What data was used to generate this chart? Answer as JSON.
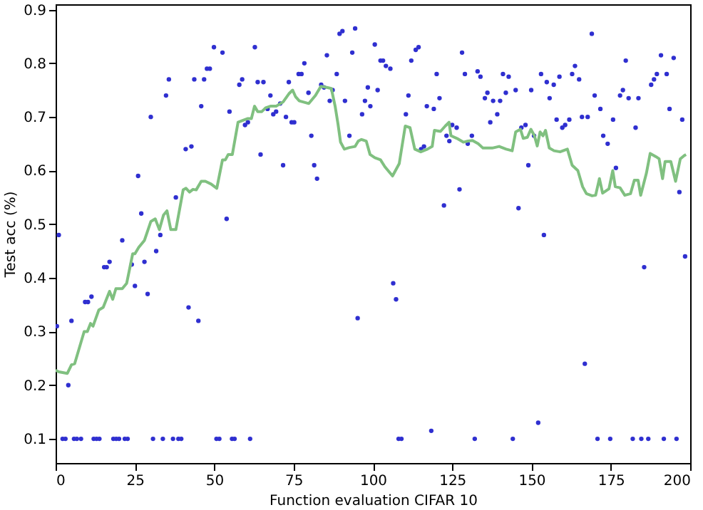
{
  "chart_data": {
    "type": "scatter",
    "xlabel": "Function evaluation CIFAR 10",
    "ylabel": "Test acc (%)",
    "xlim": [
      0,
      200
    ],
    "ylim": [
      0.055,
      0.91
    ],
    "xticks": [
      0,
      25,
      50,
      75,
      100,
      125,
      150,
      175,
      200
    ],
    "yticks": [
      0.1,
      0.2,
      0.3,
      0.4,
      0.5,
      0.6,
      0.7,
      0.8,
      0.9
    ],
    "grid": false,
    "series": [
      {
        "marker": "circle",
        "color": "#2f2fd0",
        "x": [
          0.4,
          1,
          2.2,
          3.1,
          4,
          5,
          5.8,
          6.7,
          8,
          9.3,
          10.2,
          11.3,
          12,
          12.9,
          13.8,
          15.3,
          16.1,
          17,
          18.2,
          19.1,
          20,
          21,
          21.8,
          22.7,
          24,
          25,
          26,
          27,
          28,
          29,
          30,
          30.7,
          31.7,
          33,
          33.8,
          34.8,
          35.7,
          37,
          37.9,
          38.7,
          39.6,
          41,
          41.9,
          42.8,
          43.7,
          45,
          45.9,
          46.8,
          47.7,
          48.6,
          49.9,
          50.7,
          51.6,
          52.6,
          53.9,
          54.8,
          55.6,
          56.4,
          57.9,
          58.8,
          59.7,
          60.6,
          61.3,
          62.8,
          63.7,
          64.6,
          65.5,
          66.8,
          67.7,
          68.6,
          69.5,
          70.8,
          71.7,
          72.6,
          73.5,
          74.4,
          75.2,
          76.6,
          77.5,
          78.4,
          79.7,
          80.6,
          81.5,
          82.4,
          83.7,
          84.6,
          85.5,
          86.4,
          87.3,
          88.6,
          89.5,
          90.4,
          91.2,
          92.6,
          93.5,
          94.4,
          95.2,
          96.6,
          97.5,
          98.4,
          99.2,
          100.6,
          101.5,
          102.4,
          103.2,
          104.1,
          105.5,
          106.4,
          107.3,
          108.1,
          109,
          110.4,
          111.2,
          112.1,
          113.5,
          114.4,
          115.2,
          116.1,
          117,
          118.4,
          119.2,
          120.1,
          121,
          122.4,
          123.2,
          124.1,
          125,
          126.4,
          127.3,
          128.1,
          129,
          129.9,
          131.2,
          132.1,
          133,
          133.9,
          135.3,
          136.1,
          137,
          137.9,
          139.2,
          140.1,
          141,
          141.9,
          142.8,
          144.1,
          145,
          145.9,
          146.8,
          148.1,
          149,
          149.9,
          150.8,
          152.1,
          153,
          153.9,
          154.8,
          155.7,
          157,
          157.9,
          158.8,
          159.7,
          160.6,
          161.9,
          162.8,
          163.7,
          165,
          165.9,
          166.8,
          167.7,
          169,
          169.9,
          170.8,
          171.7,
          172.6,
          174,
          174.8,
          175.7,
          176.6,
          177.9,
          178.8,
          179.7,
          180.6,
          181.9,
          182.8,
          183.7,
          184.6,
          185.5,
          186.8,
          187.7,
          188.6,
          189.5,
          190.8,
          191.7,
          192.6,
          193.5,
          194.8,
          195.7,
          196.6,
          197.5,
          198.4
        ],
        "values": [
          0.31,
          0.48,
          0.1,
          0.1,
          0.2,
          0.32,
          0.1,
          0.1,
          0.1,
          0.355,
          0.355,
          0.365,
          0.1,
          0.1,
          0.1,
          0.42,
          0.42,
          0.43,
          0.1,
          0.1,
          0.1,
          0.47,
          0.1,
          0.1,
          0.425,
          0.385,
          0.59,
          0.52,
          0.43,
          0.37,
          0.7,
          0.1,
          0.45,
          0.48,
          0.1,
          0.74,
          0.77,
          0.1,
          0.55,
          0.1,
          0.1,
          0.64,
          0.345,
          0.645,
          0.77,
          0.32,
          0.72,
          0.77,
          0.79,
          0.79,
          0.83,
          0.1,
          0.1,
          0.82,
          0.51,
          0.71,
          0.1,
          0.1,
          0.76,
          0.77,
          0.685,
          0.69,
          0.1,
          0.83,
          0.765,
          0.63,
          0.765,
          0.715,
          0.74,
          0.705,
          0.71,
          0.725,
          0.61,
          0.7,
          0.765,
          0.69,
          0.69,
          0.78,
          0.78,
          0.8,
          0.745,
          0.665,
          0.61,
          0.585,
          0.76,
          0.755,
          0.815,
          0.73,
          0.75,
          0.78,
          0.855,
          0.86,
          0.73,
          0.665,
          0.82,
          0.865,
          0.325,
          0.705,
          0.73,
          0.755,
          0.72,
          0.835,
          0.75,
          0.805,
          0.805,
          0.795,
          0.79,
          0.39,
          0.36,
          0.1,
          0.1,
          0.705,
          0.74,
          0.805,
          0.825,
          0.83,
          0.64,
          0.645,
          0.72,
          0.115,
          0.715,
          0.78,
          0.735,
          0.535,
          0.665,
          0.655,
          0.685,
          0.68,
          0.565,
          0.82,
          0.78,
          0.65,
          0.665,
          0.1,
          0.785,
          0.775,
          0.735,
          0.745,
          0.69,
          0.73,
          0.705,
          0.73,
          0.78,
          0.745,
          0.775,
          0.1,
          0.75,
          0.53,
          0.68,
          0.685,
          0.61,
          0.75,
          0.665,
          0.13,
          0.78,
          0.48,
          0.765,
          0.735,
          0.76,
          0.695,
          0.775,
          0.68,
          0.685,
          0.695,
          0.78,
          0.795,
          0.77,
          0.7,
          0.24,
          0.7,
          0.855,
          0.74,
          0.1,
          0.715,
          0.665,
          0.65,
          0.1,
          0.695,
          0.605,
          0.74,
          0.75,
          0.805,
          0.735,
          0.1,
          0.68,
          0.735,
          0.1,
          0.42,
          0.1,
          0.76,
          0.77,
          0.78,
          0.815,
          0.1,
          0.78,
          0.715,
          0.81,
          0.1,
          0.56,
          0.695,
          0.44
        ]
      },
      {
        "type": "line",
        "line_style": "solid",
        "color": "#80c080",
        "x": [
          0,
          1,
          3.7,
          5,
          6,
          8,
          9,
          10,
          11,
          11.8,
          13.6,
          15,
          17,
          18,
          19,
          21,
          22.4,
          24.3,
          25,
          26.2,
          28,
          30,
          31.4,
          32.7,
          34,
          35.1,
          36.3,
          37.9,
          40.2,
          41.1,
          42.2,
          43.3,
          44.3,
          45.9,
          47.2,
          49,
          50.8,
          52.6,
          53.5,
          54.4,
          55.7,
          57.5,
          58.8,
          60.6,
          61.7,
          62.7,
          63.7,
          65,
          66.2,
          67.7,
          69.5,
          71.7,
          73.5,
          74.7,
          75.6,
          76.8,
          79.8,
          81.9,
          83.6,
          85.5,
          86.9,
          88.1,
          89,
          89.8,
          91,
          92.6,
          94.4,
          95.4,
          96.4,
          97.9,
          99.1,
          100.6,
          102.4,
          103.8,
          106.2,
          108.3,
          110.2,
          111.7,
          113.2,
          115.1,
          117.2,
          118.7,
          119.4,
          121.3,
          122.8,
          124,
          124.6,
          126.5,
          128.5,
          130,
          131.4,
          133.2,
          134.7,
          135.4,
          137.6,
          139.8,
          142,
          143.9,
          145,
          146.5,
          147.4,
          148.7,
          149.8,
          150.9,
          151.8,
          152.7,
          153.6,
          154.4,
          155.6,
          157.1,
          159,
          161.3,
          162.8,
          164.6,
          166.1,
          167.3,
          169.1,
          170.2,
          171.4,
          172.4,
          174.4,
          175.6,
          176.4,
          177.9,
          179.4,
          181.2,
          182.4,
          183.6,
          184.4,
          186.2,
          187.4,
          189.2,
          190.2,
          191.3,
          192.1,
          193.9,
          195.4,
          196.9,
          198.1,
          198.7
        ],
        "values": [
          0.228,
          0.225,
          0.222,
          0.238,
          0.24,
          0.28,
          0.3,
          0.3,
          0.315,
          0.31,
          0.34,
          0.345,
          0.375,
          0.36,
          0.38,
          0.38,
          0.39,
          0.445,
          0.445,
          0.457,
          0.47,
          0.505,
          0.51,
          0.49,
          0.517,
          0.525,
          0.49,
          0.49,
          0.564,
          0.567,
          0.56,
          0.565,
          0.564,
          0.58,
          0.58,
          0.575,
          0.567,
          0.62,
          0.62,
          0.63,
          0.63,
          0.69,
          0.693,
          0.697,
          0.697,
          0.72,
          0.71,
          0.71,
          0.717,
          0.72,
          0.72,
          0.728,
          0.743,
          0.75,
          0.738,
          0.73,
          0.725,
          0.74,
          0.757,
          0.755,
          0.753,
          0.72,
          0.687,
          0.653,
          0.64,
          0.643,
          0.645,
          0.655,
          0.658,
          0.655,
          0.63,
          0.624,
          0.62,
          0.607,
          0.59,
          0.613,
          0.683,
          0.68,
          0.64,
          0.635,
          0.64,
          0.645,
          0.675,
          0.673,
          0.683,
          0.69,
          0.665,
          0.66,
          0.653,
          0.655,
          0.656,
          0.65,
          0.642,
          0.642,
          0.642,
          0.645,
          0.64,
          0.637,
          0.672,
          0.677,
          0.66,
          0.662,
          0.677,
          0.665,
          0.646,
          0.672,
          0.665,
          0.675,
          0.642,
          0.637,
          0.635,
          0.64,
          0.61,
          0.6,
          0.57,
          0.557,
          0.553,
          0.554,
          0.585,
          0.558,
          0.566,
          0.6,
          0.57,
          0.568,
          0.554,
          0.557,
          0.582,
          0.582,
          0.554,
          0.595,
          0.632,
          0.626,
          0.622,
          0.585,
          0.617,
          0.617,
          0.58,
          0.622,
          0.628,
          0.63
        ]
      }
    ]
  }
}
